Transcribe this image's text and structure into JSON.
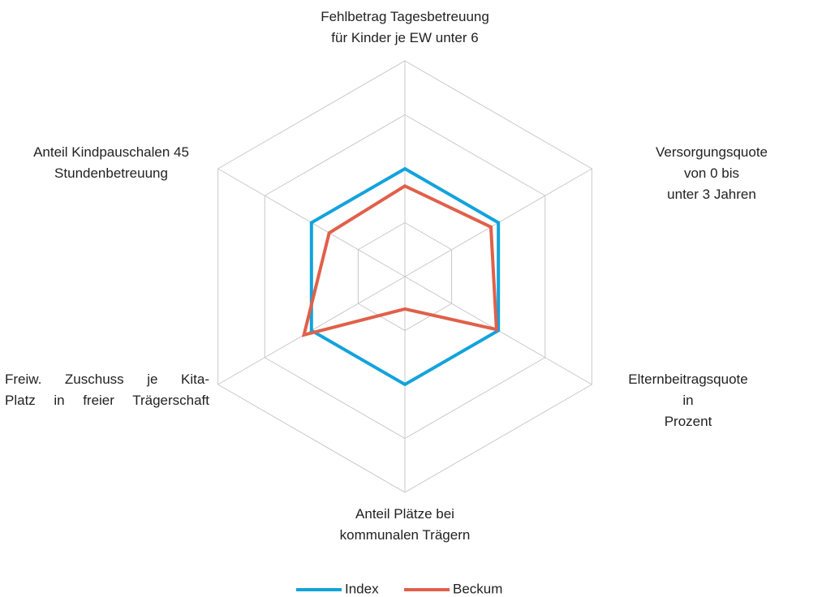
{
  "chart_data": {
    "type": "radar",
    "categories": [
      "Fehlbetrag Tagesbetreuung\nfür Kinder je EW unter 6",
      "Versorgungsquote von 0 bis\nunter 3 Jahren",
      "Elternbeitragsquote in\nProzent",
      "Anteil Plätze bei\nkommunalen Trägern",
      "Freiw. Zuschuss je    Kita-\nPlatz in freier Trägerschaft",
      "Anteil Kindpauschalen 45\nStundenbetreuung"
    ],
    "series": [
      {
        "name": "Index",
        "color": "#12a3dc",
        "values": [
          100,
          100,
          100,
          100,
          100,
          100
        ]
      },
      {
        "name": "Beckum",
        "color": "#e0604a",
        "values": [
          84,
          92,
          98,
          30,
          108,
          81
        ]
      }
    ],
    "ylim": [
      0,
      200
    ],
    "yticks": [
      0,
      50,
      100,
      150,
      200
    ],
    "grid": true,
    "legend": "bottom"
  }
}
